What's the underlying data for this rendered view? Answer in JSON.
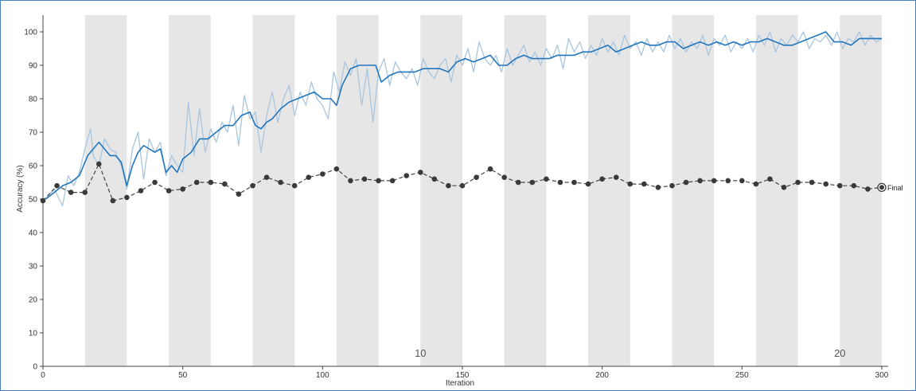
{
  "chart_data": {
    "type": "line",
    "xlabel": "Iteration",
    "ylabel": "Accuracy (%)",
    "xlim": [
      0,
      300
    ],
    "ylim": [
      0,
      105
    ],
    "x_ticks": [
      0,
      50,
      100,
      150,
      200,
      250,
      300
    ],
    "y_ticks": [
      0,
      10,
      20,
      30,
      40,
      50,
      60,
      70,
      80,
      90,
      100
    ],
    "epoch_shading": {
      "iterations_per_epoch": 15,
      "shaded_epochs": [
        2,
        4,
        6,
        8,
        10,
        12,
        14,
        16,
        18,
        20
      ],
      "color": "#e6e6e6"
    },
    "epoch_labels": [
      {
        "epoch": "10",
        "x": 135
      },
      {
        "epoch": "20",
        "x": 285
      }
    ],
    "series": [
      {
        "role": "training-raw",
        "color": "#aac6de",
        "x": [
          1,
          4,
          7,
          9,
          11,
          13,
          15,
          17,
          18,
          20,
          22,
          24,
          26,
          28,
          30,
          32,
          34,
          36,
          38,
          40,
          42,
          44,
          46,
          48,
          50,
          52,
          54,
          56,
          58,
          60,
          62,
          64,
          66,
          68,
          70,
          72,
          74,
          76,
          78,
          80,
          82,
          84,
          86,
          88,
          90,
          92,
          94,
          96,
          98,
          100,
          102,
          104,
          106,
          108,
          110,
          112,
          114,
          116,
          118,
          120,
          122,
          124,
          126,
          128,
          130,
          132,
          134,
          136,
          138,
          140,
          142,
          144,
          146,
          148,
          150,
          152,
          154,
          156,
          158,
          160,
          162,
          164,
          166,
          168,
          170,
          172,
          174,
          176,
          178,
          180,
          182,
          184,
          186,
          188,
          190,
          192,
          194,
          196,
          198,
          200,
          202,
          204,
          206,
          208,
          210,
          212,
          214,
          216,
          218,
          220,
          222,
          224,
          226,
          228,
          230,
          232,
          234,
          236,
          238,
          240,
          242,
          244,
          246,
          248,
          250,
          252,
          254,
          256,
          258,
          260,
          262,
          264,
          266,
          268,
          270,
          272,
          274,
          276,
          278,
          280,
          282,
          284,
          286,
          288,
          290,
          292,
          294,
          296,
          298,
          300
        ],
        "values": [
          50,
          53,
          48,
          57,
          54,
          58,
          65,
          71,
          63,
          60,
          68,
          65,
          64,
          60,
          53,
          65,
          70,
          56,
          68,
          64,
          67,
          57,
          63,
          60,
          58,
          79,
          63,
          77,
          64,
          71,
          67,
          73,
          70,
          78,
          66,
          81,
          74,
          76,
          64,
          75,
          82,
          73,
          80,
          84,
          75,
          82,
          78,
          85,
          80,
          78,
          74,
          88,
          82,
          91,
          87,
          92,
          78,
          89,
          73,
          88,
          92,
          84,
          91,
          88,
          86,
          89,
          84,
          92,
          88,
          86,
          90,
          92,
          85,
          93,
          90,
          95,
          88,
          97,
          92,
          90,
          93,
          88,
          95,
          90,
          93,
          96,
          91,
          94,
          90,
          95,
          92,
          96,
          89,
          98,
          94,
          97,
          92,
          96,
          93,
          98,
          94,
          97,
          93,
          99,
          95,
          97,
          93,
          98,
          94,
          97,
          94,
          99,
          95,
          98,
          94,
          97,
          95,
          99,
          93,
          98,
          96,
          99,
          94,
          97,
          95,
          98,
          94,
          99,
          96,
          100,
          94,
          98,
          96,
          99,
          97,
          100,
          95,
          98,
          97,
          99,
          96,
          100,
          95,
          98,
          97,
          100,
          96,
          99,
          97,
          98
        ]
      },
      {
        "role": "training-smoothed",
        "color": "#2176bd",
        "x": [
          1,
          4,
          7,
          10,
          13,
          16,
          18,
          20,
          22,
          24,
          26,
          28,
          30,
          32,
          34,
          36,
          38,
          40,
          42,
          44,
          46,
          48,
          50,
          53,
          56,
          59,
          62,
          65,
          68,
          71,
          74,
          76,
          78,
          80,
          82,
          85,
          88,
          91,
          94,
          97,
          100,
          103,
          105,
          107,
          110,
          113,
          116,
          119,
          121,
          124,
          127,
          130,
          133,
          136,
          139,
          142,
          145,
          148,
          151,
          154,
          157,
          160,
          163,
          166,
          169,
          172,
          175,
          178,
          181,
          184,
          187,
          190,
          193,
          196,
          199,
          202,
          205,
          208,
          211,
          214,
          217,
          220,
          223,
          226,
          229,
          232,
          235,
          238,
          241,
          244,
          247,
          250,
          253,
          256,
          259,
          262,
          265,
          268,
          271,
          274,
          277,
          280,
          283,
          286,
          289,
          292,
          295,
          298,
          300
        ],
        "values": [
          50,
          52,
          54,
          55,
          57,
          63,
          65,
          67,
          65,
          63,
          63,
          61,
          54,
          60,
          64,
          66,
          65,
          64,
          65,
          58,
          60,
          58,
          62,
          64,
          68,
          68,
          70,
          72,
          72,
          75,
          76,
          72,
          71,
          73,
          74,
          77,
          79,
          80,
          81,
          82,
          80,
          80,
          78,
          84,
          89,
          90,
          90,
          90,
          85,
          87,
          88,
          88,
          88,
          89,
          89,
          89,
          88,
          91,
          92,
          91,
          92,
          93,
          90,
          90,
          92,
          93,
          92,
          92,
          92,
          93,
          93,
          93,
          94,
          94,
          95,
          96,
          94,
          95,
          96,
          97,
          96,
          96,
          97,
          97,
          95,
          96,
          97,
          96,
          97,
          96,
          97,
          96,
          97,
          97,
          98,
          97,
          96,
          96,
          97,
          98,
          99,
          100,
          97,
          97,
          96,
          98,
          98,
          98,
          98
        ]
      },
      {
        "role": "validation",
        "color": "#444444",
        "point_color": "#3a3a3a",
        "dashed": true,
        "x": [
          0,
          5,
          10,
          15,
          20,
          25,
          30,
          35,
          40,
          45,
          50,
          55,
          60,
          65,
          70,
          75,
          80,
          85,
          90,
          95,
          100,
          105,
          110,
          115,
          120,
          125,
          130,
          135,
          140,
          145,
          150,
          155,
          160,
          165,
          170,
          175,
          180,
          185,
          190,
          195,
          200,
          205,
          210,
          215,
          220,
          225,
          230,
          235,
          240,
          245,
          250,
          255,
          260,
          265,
          270,
          275,
          280,
          285,
          290,
          295,
          300
        ],
        "values": [
          49.5,
          54,
          52,
          52,
          60.5,
          49.5,
          50.5,
          52.5,
          55,
          52.5,
          53,
          55,
          55,
          54.5,
          51.5,
          54,
          56.5,
          55,
          54,
          56.5,
          57.5,
          59,
          55.5,
          56,
          55.5,
          55.5,
          57,
          58,
          56,
          54,
          54,
          56.5,
          59,
          56.5,
          55,
          55,
          56,
          55,
          55,
          54.5,
          56,
          56.5,
          54.5,
          54.5,
          53.5,
          54,
          55,
          55.5,
          55.5,
          55.5,
          55.5,
          54.5,
          56,
          53.5,
          55,
          55,
          54.5,
          54,
          54,
          53,
          53.5
        ],
        "end_marker_label": "Final"
      }
    ]
  }
}
